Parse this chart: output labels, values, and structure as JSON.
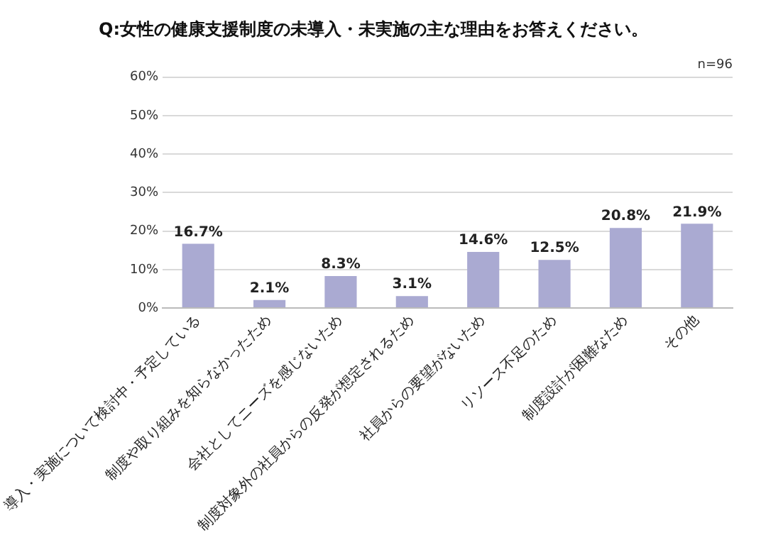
{
  "chart_data": {
    "type": "bar",
    "title": "Q:女性の健康支援制度の未導入・未実施の主な理由をお答えください。",
    "categories": [
      "導入・実施について検討中・予定している",
      "制度や取り組みを知らなかったため",
      "会社としてニーズを感じないため",
      "制度対象外の社員からの反発が想定されるため",
      "社員からの要望がないため",
      "リソース不足のため",
      "制度設計が困難なため",
      "その他"
    ],
    "values": [
      16.7,
      2.1,
      8.3,
      3.1,
      14.6,
      12.5,
      20.8,
      21.9
    ],
    "value_labels": [
      "16.7%",
      "2.1%",
      "8.3%",
      "3.1%",
      "14.6%",
      "12.5%",
      "20.8%",
      "21.9%"
    ],
    "color": "#aaaad2",
    "ylim": [
      0,
      60
    ],
    "yticks": [
      {
        "value": 0,
        "label": "0%"
      },
      {
        "value": 10,
        "label": "10%"
      },
      {
        "value": 20,
        "label": "20%"
      },
      {
        "value": 30,
        "label": "30%"
      },
      {
        "value": 40,
        "label": "40%"
      },
      {
        "value": 50,
        "label": "50%"
      },
      {
        "value": 60,
        "label": "60%"
      }
    ],
    "grid": "y",
    "annotations": [
      "n=96"
    ]
  }
}
